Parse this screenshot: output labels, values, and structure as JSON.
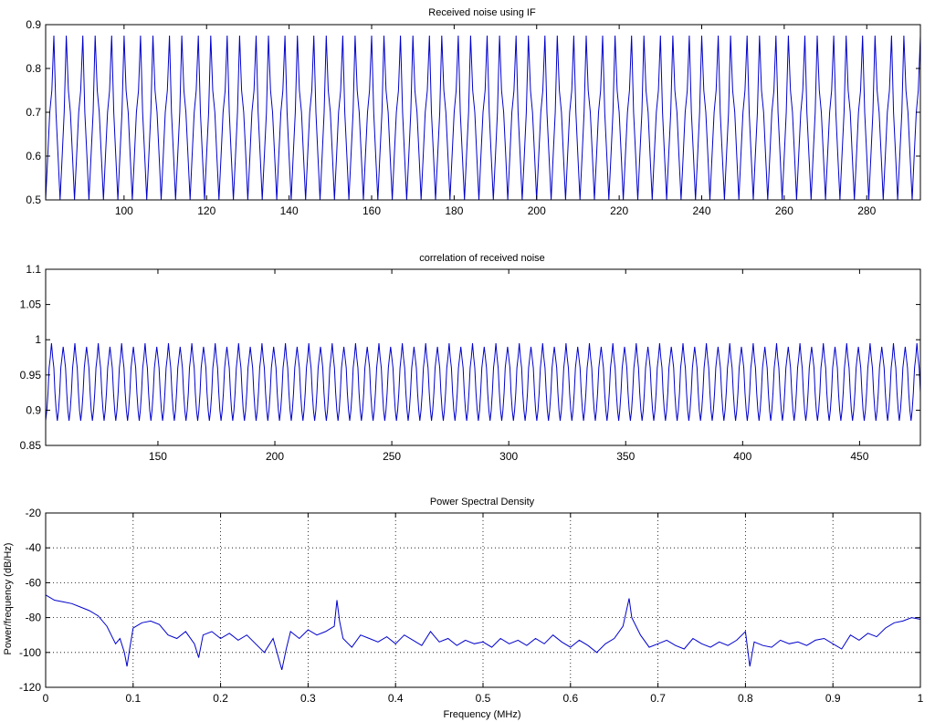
{
  "figure": {
    "series_color": "#0000cc",
    "grid_color": "#000000",
    "background": "#ffffff"
  },
  "chart_data": [
    {
      "type": "line",
      "title": "Received noise using IF",
      "xlabel": "",
      "ylabel": "",
      "xlim": [
        81,
        293
      ],
      "ylim": [
        0.5,
        0.9
      ],
      "grid": false,
      "xticks": [
        100,
        120,
        140,
        160,
        180,
        200,
        220,
        240,
        260,
        280
      ],
      "xtick_labels": [
        "100",
        "120",
        "140",
        "160",
        "180",
        "200",
        "220",
        "240",
        "260",
        "280"
      ],
      "yticks": [
        0.5,
        0.6,
        0.7,
        0.8,
        0.9
      ],
      "ytick_labels": [
        "0.5",
        "0.6",
        "0.7",
        "0.8",
        "0.9"
      ],
      "signal": {
        "x_start": 81,
        "x_end": 293,
        "x_step": 0.5,
        "pattern": [
          0.5,
          0.6,
          0.7,
          0.75,
          0.875,
          0.7,
          0.6,
          0.5,
          0.6,
          0.7,
          0.875,
          0.75,
          0.7,
          0.6
        ]
      }
    },
    {
      "type": "line",
      "title": "correlation of received noise",
      "xlabel": "",
      "ylabel": "",
      "xlim": [
        102,
        476
      ],
      "ylim": [
        0.85,
        1.1
      ],
      "grid": false,
      "xticks": [
        150,
        200,
        250,
        300,
        350,
        400,
        450
      ],
      "xtick_labels": [
        "150",
        "200",
        "250",
        "300",
        "350",
        "400",
        "450"
      ],
      "yticks": [
        0.85,
        0.9,
        0.95,
        1,
        1.05,
        1.1
      ],
      "ytick_labels": [
        "0.85",
        "0.9",
        "0.95",
        "1",
        "1.05",
        "1.1"
      ],
      "signal": {
        "x_start": 102,
        "x_end": 476,
        "x_step": 0.5,
        "pattern": [
          0.885,
          0.9,
          0.925,
          0.96,
          0.975,
          0.995,
          0.975,
          0.96,
          0.925,
          0.9,
          0.885,
          0.9,
          0.925,
          0.96,
          0.975,
          0.99,
          0.975,
          0.96,
          0.925,
          0.9
        ]
      }
    },
    {
      "type": "line",
      "title": "Power Spectral Density",
      "xlabel": "Frequency (MHz)",
      "ylabel": "Power/frequency (dB/Hz)",
      "xlim": [
        0,
        1
      ],
      "ylim": [
        -120,
        -20
      ],
      "grid": true,
      "xticks": [
        0,
        0.1,
        0.2,
        0.3,
        0.4,
        0.5,
        0.6,
        0.7,
        0.8,
        0.9,
        1
      ],
      "xtick_labels": [
        "0",
        "0.1",
        "0.2",
        "0.3",
        "0.4",
        "0.5",
        "0.6",
        "0.7",
        "0.8",
        "0.9",
        "1"
      ],
      "yticks": [
        -120,
        -100,
        -80,
        -60,
        -40,
        -20
      ],
      "ytick_labels": [
        "-120",
        "-100",
        "-80",
        "-60",
        "-40",
        "-20"
      ],
      "series": [
        {
          "x": [
            0,
            0.01,
            0.02,
            0.03,
            0.04,
            0.05,
            0.06,
            0.07,
            0.075,
            0.08,
            0.085,
            0.09,
            0.093,
            0.096,
            0.1,
            0.11,
            0.12,
            0.13,
            0.14,
            0.15,
            0.16,
            0.17,
            0.175,
            0.18,
            0.19,
            0.2,
            0.21,
            0.22,
            0.23,
            0.24,
            0.25,
            0.26,
            0.27,
            0.275,
            0.28,
            0.29,
            0.3,
            0.31,
            0.32,
            0.33,
            0.333,
            0.336,
            0.34,
            0.35,
            0.36,
            0.37,
            0.38,
            0.39,
            0.4,
            0.41,
            0.42,
            0.43,
            0.44,
            0.45,
            0.46,
            0.47,
            0.48,
            0.49,
            0.5,
            0.51,
            0.52,
            0.53,
            0.54,
            0.55,
            0.56,
            0.57,
            0.58,
            0.59,
            0.6,
            0.61,
            0.62,
            0.63,
            0.64,
            0.65,
            0.66,
            0.667,
            0.67,
            0.68,
            0.69,
            0.7,
            0.71,
            0.72,
            0.73,
            0.74,
            0.75,
            0.76,
            0.77,
            0.78,
            0.79,
            0.8,
            0.805,
            0.81,
            0.82,
            0.83,
            0.84,
            0.85,
            0.86,
            0.87,
            0.88,
            0.89,
            0.9,
            0.91,
            0.92,
            0.93,
            0.94,
            0.95,
            0.96,
            0.97,
            0.98,
            0.99,
            1
          ],
          "y": [
            -67,
            -70,
            -71,
            -72,
            -74,
            -76,
            -79,
            -85,
            -90,
            -95,
            -92,
            -100,
            -108,
            -98,
            -86,
            -83,
            -82,
            -84,
            -90,
            -92,
            -88,
            -95,
            -103,
            -90,
            -88,
            -92,
            -89,
            -93,
            -90,
            -95,
            -100,
            -92,
            -110,
            -98,
            -88,
            -92,
            -87,
            -90,
            -88,
            -85,
            -70,
            -82,
            -92,
            -97,
            -90,
            -92,
            -94,
            -91,
            -95,
            -90,
            -93,
            -96,
            -88,
            -94,
            -92,
            -96,
            -93,
            -95,
            -94,
            -97,
            -92,
            -95,
            -93,
            -96,
            -92,
            -95,
            -90,
            -94,
            -97,
            -93,
            -96,
            -100,
            -95,
            -92,
            -85,
            -69,
            -80,
            -90,
            -97,
            -95,
            -93,
            -96,
            -98,
            -92,
            -95,
            -97,
            -94,
            -96,
            -93,
            -88,
            -108,
            -94,
            -96,
            -97,
            -93,
            -95,
            -94,
            -96,
            -93,
            -92,
            -95,
            -98,
            -90,
            -93,
            -89,
            -91,
            -86,
            -83,
            -82,
            -80,
            -81
          ]
        }
      ]
    }
  ]
}
